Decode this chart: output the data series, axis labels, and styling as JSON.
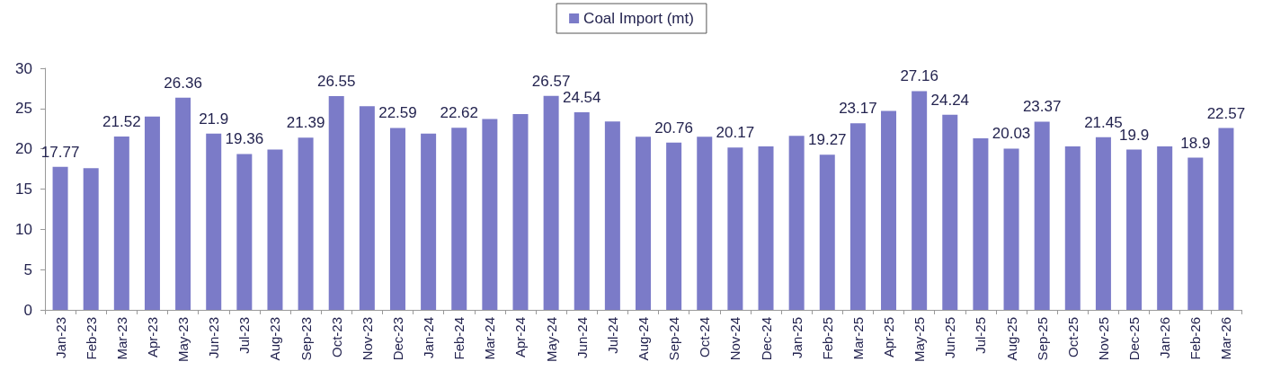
{
  "chart_data": {
    "type": "bar",
    "categories": [
      "Jan-23",
      "Feb-23",
      "Mar-23",
      "Apr-23",
      "May-23",
      "Jun-23",
      "Jul-23",
      "Aug-23",
      "Sep-23",
      "Oct-23",
      "Nov-23",
      "Dec-23",
      "Jan-24",
      "Feb-24",
      "Mar-24",
      "Apr-24",
      "May-24",
      "Jun-24",
      "Jul-24",
      "Aug-24",
      "Sep-24",
      "Oct-24",
      "Nov-24",
      "Dec-24",
      "Jan-25",
      "Feb-25",
      "Mar-25",
      "Apr-25",
      "May-25",
      "Jun-25",
      "Jul-25",
      "Aug-25",
      "Sep-25",
      "Oct-25",
      "Nov-25",
      "Dec-25",
      "Jan-26",
      "Feb-26",
      "Mar-26"
    ],
    "series": [
      {
        "name": "Coal Import (mt)",
        "color": "#7b7bc8",
        "values": [
          17.77,
          17.6,
          21.52,
          24.0,
          26.36,
          21.9,
          19.36,
          19.9,
          21.39,
          26.55,
          25.3,
          22.59,
          21.9,
          22.62,
          23.7,
          24.3,
          26.57,
          24.54,
          23.4,
          21.5,
          20.76,
          21.5,
          20.17,
          20.3,
          21.6,
          19.27,
          23.17,
          24.7,
          27.16,
          24.24,
          21.3,
          20.03,
          23.37,
          20.3,
          21.45,
          19.9,
          20.3,
          18.9,
          22.57
        ],
        "value_labels": [
          "17.77",
          null,
          "21.52",
          null,
          "26.36",
          "21.9",
          "19.36",
          null,
          "21.39",
          "26.55",
          null,
          "22.59",
          null,
          "22.62",
          null,
          null,
          "26.57",
          "24.54",
          null,
          null,
          "20.76",
          null,
          "20.17",
          null,
          null,
          "19.27",
          "23.17",
          null,
          "27.16",
          "24.24",
          null,
          "20.03",
          "23.37",
          null,
          "21.45",
          "19.9",
          null,
          "18.9",
          "22.57"
        ]
      }
    ],
    "ylim": [
      0,
      30
    ],
    "yticks": [
      0,
      5,
      10,
      15,
      20,
      25,
      30
    ],
    "grid": false,
    "legend": "top"
  }
}
